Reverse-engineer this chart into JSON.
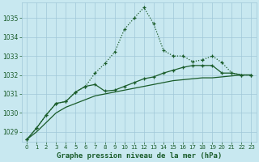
{
  "x": [
    0,
    1,
    2,
    3,
    4,
    5,
    6,
    7,
    8,
    9,
    10,
    11,
    12,
    13,
    14,
    15,
    16,
    17,
    18,
    19,
    20,
    21,
    22,
    23
  ],
  "line1": [
    1028.6,
    1029.2,
    1029.9,
    1030.5,
    1030.6,
    1031.1,
    1031.4,
    1032.1,
    1032.6,
    1033.2,
    1034.4,
    1035.0,
    1035.55,
    1034.7,
    1033.3,
    1033.0,
    1033.0,
    1032.7,
    1032.8,
    1033.0,
    1032.65,
    1032.1,
    1032.0,
    1032.0
  ],
  "line2": [
    1028.6,
    1029.2,
    1029.9,
    1030.5,
    1030.6,
    1031.1,
    1031.4,
    1031.5,
    1031.15,
    1031.2,
    1031.4,
    1031.6,
    1031.8,
    1031.9,
    1032.1,
    1032.25,
    1032.4,
    1032.5,
    1032.5,
    1032.5,
    1032.1,
    1032.1,
    1032.0,
    1032.0
  ],
  "line3": [
    1028.6,
    1029.0,
    1029.5,
    1030.0,
    1030.3,
    1030.5,
    1030.7,
    1030.9,
    1031.0,
    1031.1,
    1031.2,
    1031.3,
    1031.4,
    1031.5,
    1031.6,
    1031.7,
    1031.75,
    1031.8,
    1031.85,
    1031.85,
    1031.9,
    1031.95,
    1032.0,
    1032.0
  ],
  "bg_color": "#c8e8f0",
  "grid_color": "#a0c8d8",
  "line_color": "#1a5c2a",
  "xlabel": "Graphe pression niveau de la mer (hPa)",
  "ylim": [
    1028.5,
    1035.8
  ],
  "yticks": [
    1029,
    1030,
    1031,
    1032,
    1033,
    1034,
    1035
  ],
  "xticks": [
    0,
    1,
    2,
    3,
    4,
    5,
    6,
    7,
    8,
    9,
    10,
    11,
    12,
    13,
    14,
    15,
    16,
    17,
    18,
    19,
    20,
    21,
    22,
    23
  ]
}
